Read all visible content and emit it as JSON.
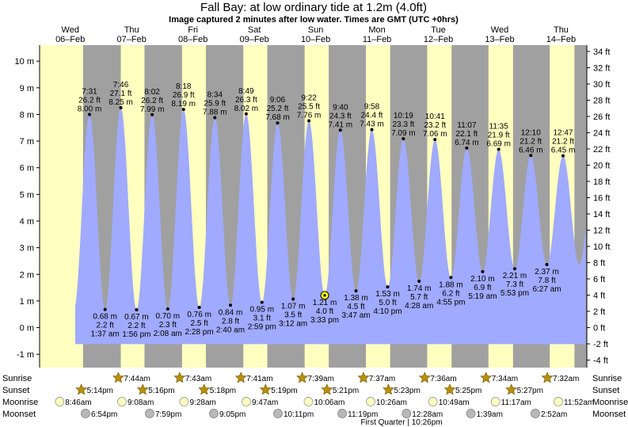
{
  "title": "Fall Bay: at low  ordinary tide at 1.2m (4.0ft)",
  "subtitle": "Image captured 2 minutes after low water. Times are GMT (UTC +0hrs)",
  "colors": {
    "day": "#ffffc0",
    "night": "#a0a0a0",
    "tide": "#a0aaff",
    "day_label": "#ff0000",
    "sun_icon": "#b8900a",
    "moon_icon": "#ffffc0",
    "moonset_icon": "#b8b8b8"
  },
  "days": [
    {
      "dow": "Wed",
      "date": "06–Feb"
    },
    {
      "dow": "Thu",
      "date": "07–Feb"
    },
    {
      "dow": "Fri",
      "date": "08–Feb"
    },
    {
      "dow": "Sat",
      "date": "09–Feb"
    },
    {
      "dow": "Sun",
      "date": "10–Feb"
    },
    {
      "dow": "Mon",
      "date": "11–Feb"
    },
    {
      "dow": "Tue",
      "date": "12–Feb"
    },
    {
      "dow": "Wed",
      "date": "13–Feb"
    },
    {
      "dow": "Thu",
      "date": "14–Feb"
    }
  ],
  "row_labels": {
    "sunrise": "Sunrise",
    "sunset": "Sunset",
    "moonrise": "Moonrise",
    "moonset": "Moonset"
  },
  "sunrise": [
    "7:44am",
    "7:43am",
    "7:41am",
    "7:39am",
    "7:37am",
    "7:36am",
    "7:34am",
    "7:32am"
  ],
  "sunset": [
    "5:14pm",
    "5:16pm",
    "5:18pm",
    "5:19pm",
    "5:21pm",
    "5:23pm",
    "5:25pm",
    "5:27pm"
  ],
  "moonrise": [
    "8:46am",
    "9:08am",
    "9:28am",
    "9:47am",
    "10:06am",
    "10:26am",
    "10:49am",
    "11:17am",
    "11:52am"
  ],
  "moonset": [
    "6:54pm",
    "7:59pm",
    "9:05pm",
    "10:11pm",
    "11:19pm",
    "12:28am",
    "1:39am",
    "2:52am"
  ],
  "moon_phase": "First Quarter | 10:26pm",
  "chart_data": {
    "type": "area",
    "title": "Fall Bay: at low  ordinary tide at 1.2m (4.0ft)",
    "subtitle": "Image captured 2 minutes after low water. Times are GMT (UTC +0hrs)",
    "y_left": {
      "unit": "m",
      "range": [
        -1.5,
        10.6
      ],
      "ticks": [
        -1,
        0,
        1,
        2,
        3,
        4,
        5,
        6,
        7,
        8,
        9,
        10
      ]
    },
    "y_right": {
      "unit": "ft",
      "ticks": [
        -4,
        -2,
        0,
        2,
        4,
        6,
        8,
        10,
        12,
        14,
        16,
        18,
        20,
        22,
        24,
        26,
        28,
        30,
        32,
        34
      ]
    },
    "x_range_days": [
      6,
      14.92
    ],
    "current": {
      "height_m": 1.21,
      "height_ft": "4.0 ft",
      "time": "3:33 pm",
      "day": 10
    },
    "high_tides": [
      {
        "day": 6,
        "time": "7:31 pm",
        "m": 8.0,
        "ft": "26.2 ft"
      },
      {
        "day": 7,
        "time": "7:46 am",
        "m": 8.25,
        "ft": "27.1 ft"
      },
      {
        "day": 7,
        "time": "8:02 pm",
        "m": 7.99,
        "ft": "26.2 ft"
      },
      {
        "day": 8,
        "time": "8:18 am",
        "m": 8.19,
        "ft": "26.9 ft"
      },
      {
        "day": 8,
        "time": "8:34 pm",
        "m": 7.88,
        "ft": "25.9 ft"
      },
      {
        "day": 9,
        "time": "8:49 am",
        "m": 8.02,
        "ft": "26.3 ft"
      },
      {
        "day": 9,
        "time": "9:06 pm",
        "m": 7.68,
        "ft": "25.2 ft"
      },
      {
        "day": 10,
        "time": "9:22 am",
        "m": 7.76,
        "ft": "25.5 ft"
      },
      {
        "day": 10,
        "time": "9:40 pm",
        "m": 7.41,
        "ft": "24.3 ft"
      },
      {
        "day": 11,
        "time": "9:58 am",
        "m": 7.43,
        "ft": "24.4 ft"
      },
      {
        "day": 11,
        "time": "10:19 pm",
        "m": 7.09,
        "ft": "23.3 ft"
      },
      {
        "day": 12,
        "time": "10:41 am",
        "m": 7.06,
        "ft": "23.2 ft"
      },
      {
        "day": 12,
        "time": "11:07 pm",
        "m": 6.74,
        "ft": "22.1 ft"
      },
      {
        "day": 13,
        "time": "11:35 am",
        "m": 6.69,
        "ft": "21.9 ft"
      },
      {
        "day": 14,
        "time": "12:10 am",
        "m": 6.46,
        "ft": "21.2 ft"
      },
      {
        "day": 14,
        "time": "12:47 pm",
        "m": 6.45,
        "ft": "21.2 ft"
      }
    ],
    "low_tides": [
      {
        "day": 7,
        "time": "1:37 am",
        "m": 0.68,
        "ft": "2.2 ft"
      },
      {
        "day": 7,
        "time": "1:56 pm",
        "m": 0.67,
        "ft": "2.2 ft"
      },
      {
        "day": 8,
        "time": "2:08 am",
        "m": 0.7,
        "ft": "2.3 ft"
      },
      {
        "day": 8,
        "time": "2:28 pm",
        "m": 0.76,
        "ft": "2.5 ft"
      },
      {
        "day": 9,
        "time": "2:40 am",
        "m": 0.84,
        "ft": "2.8 ft"
      },
      {
        "day": 9,
        "time": "2:59 pm",
        "m": 0.95,
        "ft": "3.1 ft"
      },
      {
        "day": 10,
        "time": "3:12 am",
        "m": 1.07,
        "ft": "3.5 ft"
      },
      {
        "day": 10,
        "time": "3:33 pm",
        "m": 1.21,
        "ft": "4.0 ft"
      },
      {
        "day": 11,
        "time": "3:47 am",
        "m": 1.38,
        "ft": "4.5 ft"
      },
      {
        "day": 11,
        "time": "4:10 pm",
        "m": 1.53,
        "ft": "5.0 ft"
      },
      {
        "day": 12,
        "time": "4:28 am",
        "m": 1.74,
        "ft": "5.7 ft"
      },
      {
        "day": 12,
        "time": "4:55 pm",
        "m": 1.88,
        "ft": "6.2 ft"
      },
      {
        "day": 13,
        "time": "5:19 am",
        "m": 2.1,
        "ft": "6.9 ft"
      },
      {
        "day": 13,
        "time": "5:53 pm",
        "m": 2.21,
        "ft": "7.3 ft"
      },
      {
        "day": 14,
        "time": "6:27 am",
        "m": 2.37,
        "ft": "7.8 ft"
      }
    ]
  }
}
